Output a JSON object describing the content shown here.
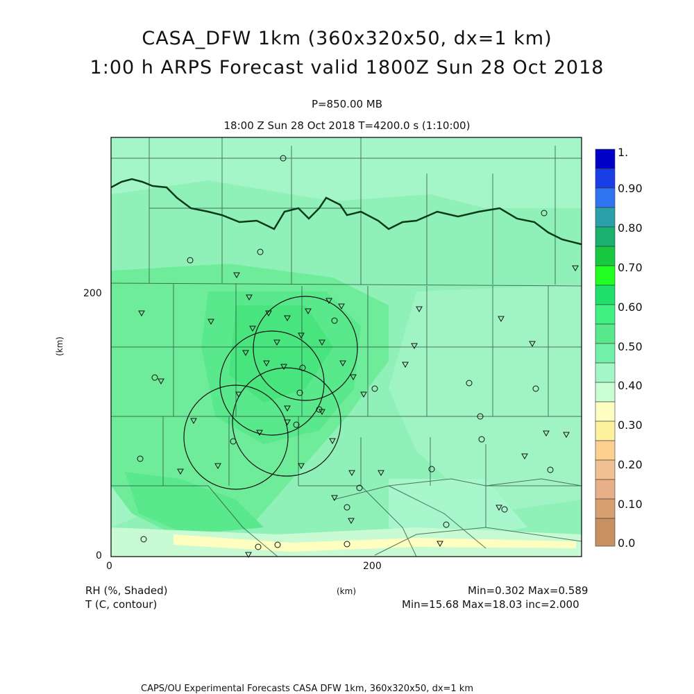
{
  "title": {
    "line1": "CASA_DFW 1km (360x320x50, dx=1 km)",
    "line2": "1:00 h ARPS Forecast valid 1800Z Sun 28 Oct 2018"
  },
  "subtitle": {
    "pressure": "P=850.00 MB",
    "time": "18:00 Z Sun 28 Oct 2018   T=4200.0 s (1:10:00)"
  },
  "axes": {
    "x_ticks": [
      "0",
      "200"
    ],
    "y_ticks": [
      "0",
      "200"
    ],
    "x_unit": "(km)",
    "y_unit": "(km)"
  },
  "legend": {
    "shaded_label": "RH (%, Shaded)",
    "contour_label": "T (C, contour)",
    "rh_stats": "Min=0.302 Max=0.589",
    "t_stats": "Min=15.68 Max=18.03 inc=2.000"
  },
  "colorbar": {
    "labels": [
      "1.",
      "0.90",
      "0.80",
      "0.70",
      "0.60",
      "0.50",
      "0.40",
      "0.30",
      "0.20",
      "0.10",
      "0.0"
    ],
    "colors": [
      "#0000c8",
      "#1a3ee6",
      "#2f74f0",
      "#2aa0a8",
      "#19b070",
      "#17c840",
      "#20ff20",
      "#1fe06a",
      "#40f080",
      "#70f0a8",
      "#a4f6c8",
      "#cafdd2",
      "#fefec0",
      "#fef2a0",
      "#fdd090",
      "#f0c090",
      "#e8b088",
      "#d8a070",
      "#c89060"
    ]
  },
  "footer": "CAPS/OU Experimental Forecasts  CASA DFW 1km, 360x320x50, dx=1 km"
}
